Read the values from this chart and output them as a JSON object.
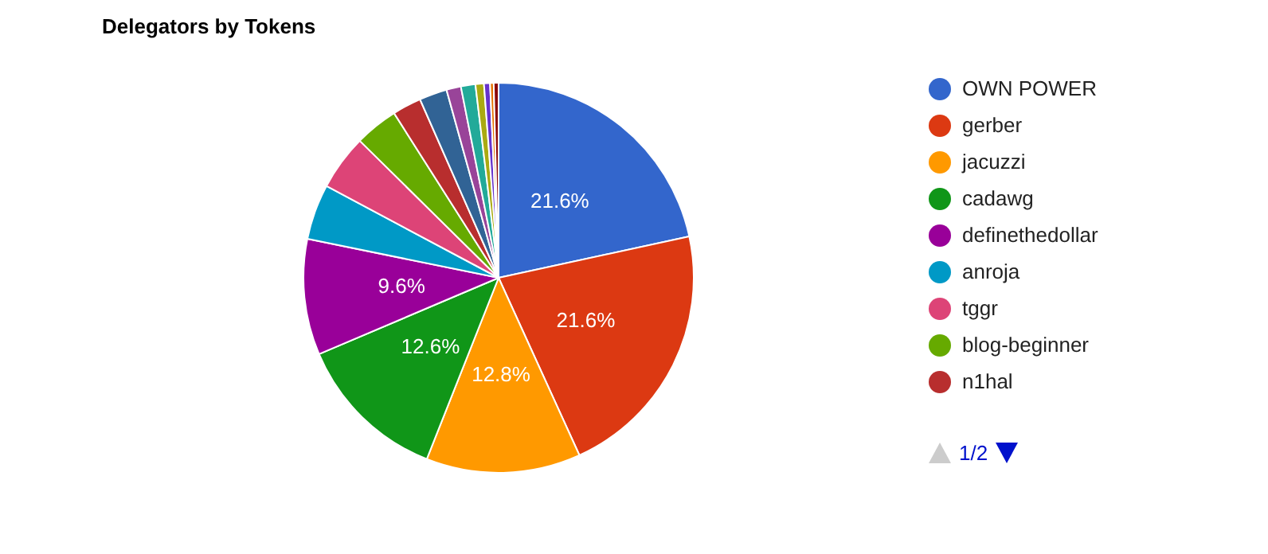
{
  "chart_data": {
    "type": "pie",
    "title": "Delegators by Tokens",
    "categories": [
      "OWN POWER",
      "gerber",
      "jacuzzi",
      "cadawg",
      "definethedollar",
      "anroja",
      "tggr",
      "blog-beginner",
      "n1hal",
      null,
      null,
      null,
      null,
      null,
      null,
      null
    ],
    "values": [
      21.6,
      21.6,
      12.8,
      12.6,
      9.6,
      4.6,
      4.6,
      3.6,
      2.4,
      2.3,
      1.2,
      1.2,
      0.7,
      0.5,
      0.3,
      0.4
    ],
    "colors": [
      "#3366cc",
      "#dc3912",
      "#ff9900",
      "#109618",
      "#990099",
      "#0099c6",
      "#dd4477",
      "#66aa00",
      "#b82e2e",
      "#316395",
      "#994499",
      "#22aa99",
      "#aaaa11",
      "#6633cc",
      "#e67300",
      "#8b0707"
    ],
    "value_labels": [
      "21.6%",
      "21.6%",
      "12.8%",
      "12.6%",
      "9.6%",
      null,
      null,
      null,
      null,
      null,
      null,
      null,
      null,
      null,
      null,
      null
    ],
    "legend": "right",
    "annotations": [
      "1/2"
    ]
  }
}
